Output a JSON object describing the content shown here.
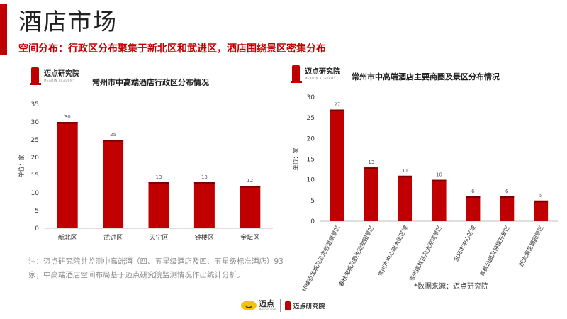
{
  "slide": {
    "title": "酒店市场",
    "subtitle": "空间分布：行政区分布聚集于新北区和武进区，酒店围绕景区密集分布",
    "accent_color": "#c00000"
  },
  "logo": {
    "name": "迈点研究院",
    "tagline": "MEADIN ACADEMY"
  },
  "note": "注：迈点研究院共监测中高端酒（四、五星级酒店及四、五星级标准酒店）93家，中高端酒店空间布局基于迈点研究院监测情况作出统计分析。",
  "source": "*数据来源：迈点研究院",
  "footer": {
    "brand": "迈点",
    "domain": "Meadin.com",
    "institute": "迈点研究院"
  },
  "chart_data": [
    {
      "type": "bar",
      "title": "常州市中高端酒店行政区分布情况",
      "ylabel": "单位：家",
      "categories": [
        "新北区",
        "武进区",
        "天宁区",
        "钟楼区",
        "金坛区"
      ],
      "values": [
        30,
        25,
        13,
        13,
        12
      ],
      "ylim": [
        0,
        35
      ],
      "yticks": [
        0,
        5,
        10,
        15,
        20,
        25,
        30,
        35
      ],
      "bar_color": "#c00000",
      "grid": false,
      "legend": "none"
    },
    {
      "type": "bar",
      "title": "常州市中高端酒店主要商圈及景区分布情况",
      "ylabel": "单位：家",
      "categories": [
        "环球恐龙城及恐龙谷温泉景区",
        "春秋淹城及野生动物园景区",
        "常州市中心南大街区域",
        "常州嬉戏谷及太湖湾景区",
        "金坛市中心区域",
        "青枫公园及钟楼开发区",
        "西太湖花博园景区"
      ],
      "values": [
        27,
        13,
        11,
        10,
        6,
        6,
        5
      ],
      "ylim": [
        0,
        30
      ],
      "yticks": [
        0,
        5,
        10,
        15,
        20,
        25,
        30
      ],
      "bar_color": "#c00000",
      "grid": false,
      "legend": "none"
    }
  ]
}
